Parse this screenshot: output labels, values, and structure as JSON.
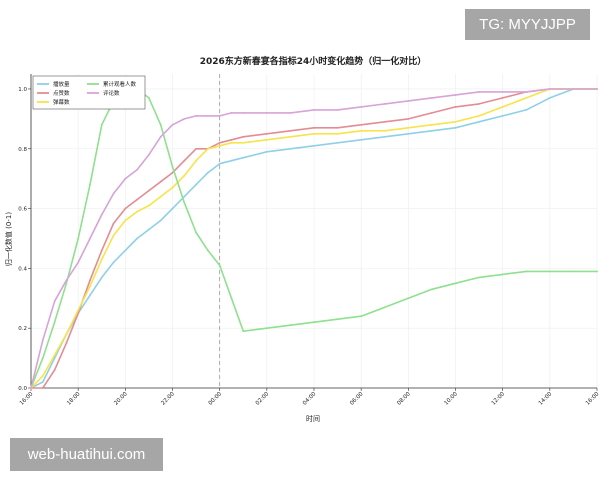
{
  "watermarks": {
    "top_right": "TG: MYYJJPP",
    "bottom_left": "web-huatihui.com"
  },
  "chart_data": {
    "type": "line",
    "title": "2026东方新春宴各指标24小时变化趋势（归一化对比）",
    "xlabel": "时间",
    "ylabel": "归一化数值 (0-1)",
    "x_ticks": [
      "16:00",
      "18:00",
      "20:00",
      "22:00",
      "00:00",
      "02:00",
      "04:00",
      "06:00",
      "08:00",
      "10:00",
      "12:00",
      "14:00",
      "16:00"
    ],
    "x_range_hours": [
      0,
      24
    ],
    "ylim": [
      0,
      1.05
    ],
    "y_ticks": [
      "0.0",
      "0.2",
      "0.4",
      "0.6",
      "0.8",
      "1.0"
    ],
    "grid": true,
    "legend_placement": "top-left",
    "marker_line_hour": 8,
    "series": [
      {
        "name": "播放量",
        "color": "#8fd0e6",
        "x": [
          0,
          0.5,
          1,
          1.5,
          2,
          2.5,
          3,
          3.5,
          4,
          4.5,
          5,
          5.5,
          6,
          6.5,
          7,
          7.5,
          8,
          8.5,
          9,
          10,
          11,
          12,
          13,
          14,
          15,
          16,
          17,
          18,
          19,
          20,
          21,
          22,
          23,
          24
        ],
        "y": [
          0,
          0.02,
          0.1,
          0.18,
          0.25,
          0.31,
          0.37,
          0.42,
          0.46,
          0.5,
          0.53,
          0.56,
          0.6,
          0.64,
          0.68,
          0.72,
          0.75,
          0.76,
          0.77,
          0.79,
          0.8,
          0.81,
          0.82,
          0.83,
          0.84,
          0.85,
          0.86,
          0.87,
          0.89,
          0.91,
          0.93,
          0.97,
          1.0,
          1.0
        ]
      },
      {
        "name": "点赞数",
        "color": "#e38c94",
        "x": [
          0,
          0.5,
          1,
          1.5,
          2,
          2.5,
          3,
          3.5,
          4,
          4.5,
          5,
          5.5,
          6,
          6.5,
          7,
          7.5,
          8,
          8.5,
          9,
          10,
          11,
          12,
          13,
          14,
          15,
          16,
          17,
          18,
          19,
          20,
          21,
          22,
          23,
          24
        ],
        "y": [
          0,
          0.0,
          0.06,
          0.15,
          0.25,
          0.36,
          0.46,
          0.55,
          0.6,
          0.63,
          0.66,
          0.69,
          0.72,
          0.76,
          0.8,
          0.8,
          0.82,
          0.83,
          0.84,
          0.85,
          0.86,
          0.87,
          0.87,
          0.88,
          0.89,
          0.9,
          0.92,
          0.94,
          0.95,
          0.97,
          0.99,
          1.0,
          1.0,
          1.0
        ]
      },
      {
        "name": "弹幕数",
        "color": "#f7e34a",
        "x": [
          0,
          0.5,
          1,
          1.5,
          2,
          2.5,
          3,
          3.5,
          4,
          4.5,
          5,
          5.5,
          6,
          6.5,
          7,
          7.5,
          8,
          8.5,
          9,
          10,
          11,
          12,
          13,
          14,
          15,
          16,
          17,
          18,
          19,
          20,
          21,
          22,
          23,
          24
        ],
        "y": [
          0,
          0.04,
          0.11,
          0.18,
          0.26,
          0.34,
          0.43,
          0.51,
          0.56,
          0.59,
          0.61,
          0.64,
          0.67,
          0.71,
          0.76,
          0.8,
          0.81,
          0.82,
          0.82,
          0.83,
          0.84,
          0.85,
          0.85,
          0.86,
          0.86,
          0.87,
          0.88,
          0.89,
          0.91,
          0.94,
          0.97,
          1.0,
          1.0,
          1.0
        ]
      },
      {
        "name": "累计观看人数",
        "color": "#8fe08f",
        "x": [
          0,
          0.5,
          1,
          1.5,
          2,
          2.5,
          3,
          3.5,
          4,
          4.5,
          5,
          5.5,
          6,
          6.5,
          7,
          7.5,
          8,
          8.5,
          9,
          10,
          11,
          12,
          13,
          14,
          15,
          16,
          17,
          18,
          19,
          20,
          21,
          22,
          23,
          24
        ],
        "y": [
          0,
          0.1,
          0.22,
          0.35,
          0.5,
          0.68,
          0.88,
          0.96,
          1.0,
          1.0,
          0.97,
          0.88,
          0.74,
          0.62,
          0.52,
          0.46,
          0.41,
          0.3,
          0.19,
          0.2,
          0.21,
          0.22,
          0.23,
          0.24,
          0.27,
          0.3,
          0.33,
          0.35,
          0.37,
          0.38,
          0.39,
          0.39,
          0.39,
          0.39
        ]
      },
      {
        "name": "评论数",
        "color": "#d7a3d8",
        "x": [
          0,
          0.5,
          1,
          1.5,
          2,
          2.5,
          3,
          3.5,
          4,
          4.5,
          5,
          5.5,
          6,
          6.5,
          7,
          7.5,
          8,
          8.5,
          9,
          10,
          11,
          12,
          13,
          14,
          15,
          16,
          17,
          18,
          19,
          20,
          21,
          22,
          23,
          24
        ],
        "y": [
          0,
          0.16,
          0.29,
          0.36,
          0.42,
          0.5,
          0.58,
          0.65,
          0.7,
          0.73,
          0.78,
          0.84,
          0.88,
          0.9,
          0.91,
          0.91,
          0.91,
          0.92,
          0.92,
          0.92,
          0.92,
          0.93,
          0.93,
          0.94,
          0.95,
          0.96,
          0.97,
          0.98,
          0.99,
          0.99,
          0.99,
          1.0,
          1.0,
          1.0
        ]
      }
    ]
  }
}
